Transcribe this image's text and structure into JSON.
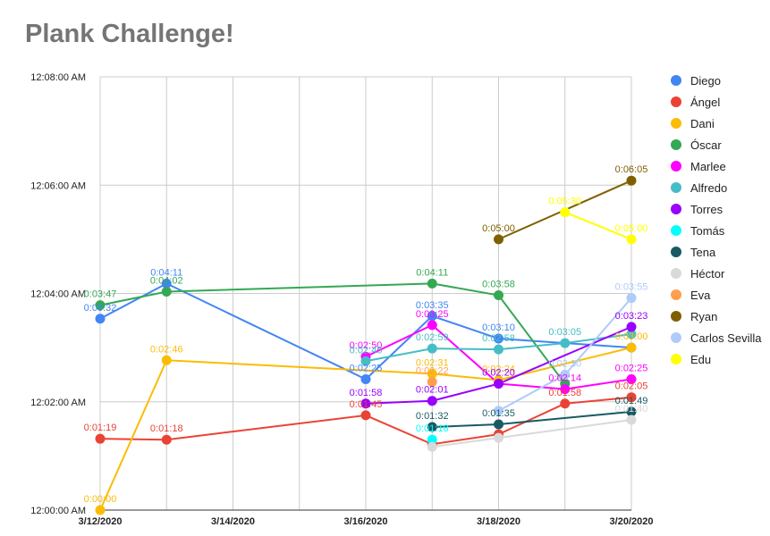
{
  "chart_data": {
    "type": "line",
    "title": "Plank Challenge!",
    "xlabel": "",
    "ylabel": "",
    "x_range": [
      "3/12/2020",
      "3/20/2020"
    ],
    "x_ticks": [
      "3/12/2020",
      "3/14/2020",
      "3/16/2020",
      "3/18/2020",
      "3/20/2020"
    ],
    "y_range_seconds": [
      0,
      480
    ],
    "y_ticks": [
      "12:00:00 AM",
      "12:02:00 AM",
      "12:04:00 AM",
      "12:06:00 AM",
      "12:08:00 AM"
    ],
    "grid": true,
    "legend_position": "right",
    "series": [
      {
        "name": "Diego",
        "color": "#4285f4",
        "points": [
          {
            "x": "3/12/2020",
            "label": "0:03:32",
            "show": true
          },
          {
            "x": "3/13/2020",
            "label": "0:04:11",
            "show": true
          },
          {
            "x": "3/16/2020",
            "label": "0:02:25",
            "show": true
          },
          {
            "x": "3/17/2020",
            "label": "0:03:35",
            "show": true
          },
          {
            "x": "3/18/2020",
            "label": "0:03:10",
            "show": true
          },
          {
            "x": "3/20/2020",
            "label": "0:03:00",
            "show": false
          }
        ]
      },
      {
        "name": "Ángel",
        "color": "#ea4335",
        "points": [
          {
            "x": "3/12/2020",
            "label": "0:01:19",
            "show": true
          },
          {
            "x": "3/13/2020",
            "label": "0:01:18",
            "show": true
          },
          {
            "x": "3/16/2020",
            "label": "0:01:45",
            "show": true
          },
          {
            "x": "3/17/2020",
            "label": "0:01:13",
            "show": false
          },
          {
            "x": "3/18/2020",
            "label": "0:01:24",
            "show": false
          },
          {
            "x": "3/19/2020",
            "label": "0:01:58",
            "show": true
          },
          {
            "x": "3/20/2020",
            "label": "0:02:05",
            "show": true
          }
        ]
      },
      {
        "name": "Dani",
        "color": "#fbbc04",
        "points": [
          {
            "x": "3/12/2020",
            "label": "0:00:00",
            "show": true
          },
          {
            "x": "3/13/2020",
            "label": "0:02:46",
            "show": true
          },
          {
            "x": "3/17/2020",
            "label": "0:02:31",
            "show": true
          },
          {
            "x": "3/18/2020",
            "label": "0:02:24",
            "show": true
          },
          {
            "x": "3/20/2020",
            "label": "0:03:00",
            "show": true
          }
        ]
      },
      {
        "name": "Óscar",
        "color": "#34a853",
        "points": [
          {
            "x": "3/12/2020",
            "label": "0:03:47",
            "show": true
          },
          {
            "x": "3/13/2020",
            "label": "0:04:02",
            "show": true
          },
          {
            "x": "3/17/2020",
            "label": "0:04:11",
            "show": true
          },
          {
            "x": "3/18/2020",
            "label": "0:03:58",
            "show": true
          },
          {
            "x": "3/19/2020",
            "label": "0:02:20",
            "show": false
          }
        ]
      },
      {
        "name": "Marlee",
        "color": "#ff00ff",
        "points": [
          {
            "x": "3/16/2020",
            "label": "0:02:50",
            "show": true
          },
          {
            "x": "3/17/2020",
            "label": "0:03:25",
            "show": true
          },
          {
            "x": "3/18/2020",
            "label": "0:02:20",
            "show": false
          },
          {
            "x": "3/19/2020",
            "label": "0:02:14",
            "show": true
          },
          {
            "x": "3/20/2020",
            "label": "0:02:25",
            "show": true
          }
        ]
      },
      {
        "name": "Alfredo",
        "color": "#46bdc6",
        "points": [
          {
            "x": "3/16/2020",
            "label": "0:02:45",
            "show": true
          },
          {
            "x": "3/17/2020",
            "label": "0:02:59",
            "show": true
          },
          {
            "x": "3/18/2020",
            "label": "0:02:58",
            "show": true
          },
          {
            "x": "3/19/2020",
            "label": "0:03:05",
            "show": true
          },
          {
            "x": "3/20/2020",
            "label": "0:03:15",
            "show": false
          }
        ]
      },
      {
        "name": "Torres",
        "color": "#9900ff",
        "points": [
          {
            "x": "3/16/2020",
            "label": "0:01:58",
            "show": true
          },
          {
            "x": "3/17/2020",
            "label": "0:02:01",
            "show": true
          },
          {
            "x": "3/18/2020",
            "label": "0:02:20",
            "show": true
          },
          {
            "x": "3/20/2020",
            "label": "0:03:23",
            "show": true
          }
        ]
      },
      {
        "name": "Tomás",
        "color": "#00ffff",
        "points": [
          {
            "x": "3/17/2020",
            "label": "0:01:18",
            "show": true
          }
        ]
      },
      {
        "name": "Tena",
        "color": "#185a63",
        "points": [
          {
            "x": "3/17/2020",
            "label": "0:01:32",
            "show": true
          },
          {
            "x": "3/18/2020",
            "label": "0:01:35",
            "show": true
          },
          {
            "x": "3/20/2020",
            "label": "0:01:49",
            "show": true
          }
        ]
      },
      {
        "name": "Héctor",
        "color": "#d9d9d9",
        "points": [
          {
            "x": "3/17/2020",
            "label": "0:01:10",
            "show": false
          },
          {
            "x": "3/18/2020",
            "label": "0:01:20",
            "show": false
          },
          {
            "x": "3/20/2020",
            "label": "0:01:40",
            "show": true
          }
        ]
      },
      {
        "name": "Eva",
        "color": "#ff9e4f",
        "points": [
          {
            "x": "3/17/2020",
            "label": "0:02:22",
            "show": true
          }
        ]
      },
      {
        "name": "Ryan",
        "color": "#7f6000",
        "points": [
          {
            "x": "3/18/2020",
            "label": "0:05:00",
            "show": true
          },
          {
            "x": "3/20/2020",
            "label": "0:06:05",
            "show": true
          }
        ]
      },
      {
        "name": "Carlos Sevilla",
        "color": "#aecbfa",
        "points": [
          {
            "x": "3/18/2020",
            "label": "0:01:50",
            "show": false
          },
          {
            "x": "3/19/2020",
            "label": "0:02:30",
            "show": true
          },
          {
            "x": "3/20/2020",
            "label": "0:03:55",
            "show": true
          }
        ]
      },
      {
        "name": "Edu",
        "color": "#ffff00",
        "points": [
          {
            "x": "3/19/2020",
            "label": "0:05:30",
            "show": true
          },
          {
            "x": "3/20/2020",
            "label": "0:05:00",
            "show": true
          }
        ]
      }
    ]
  }
}
